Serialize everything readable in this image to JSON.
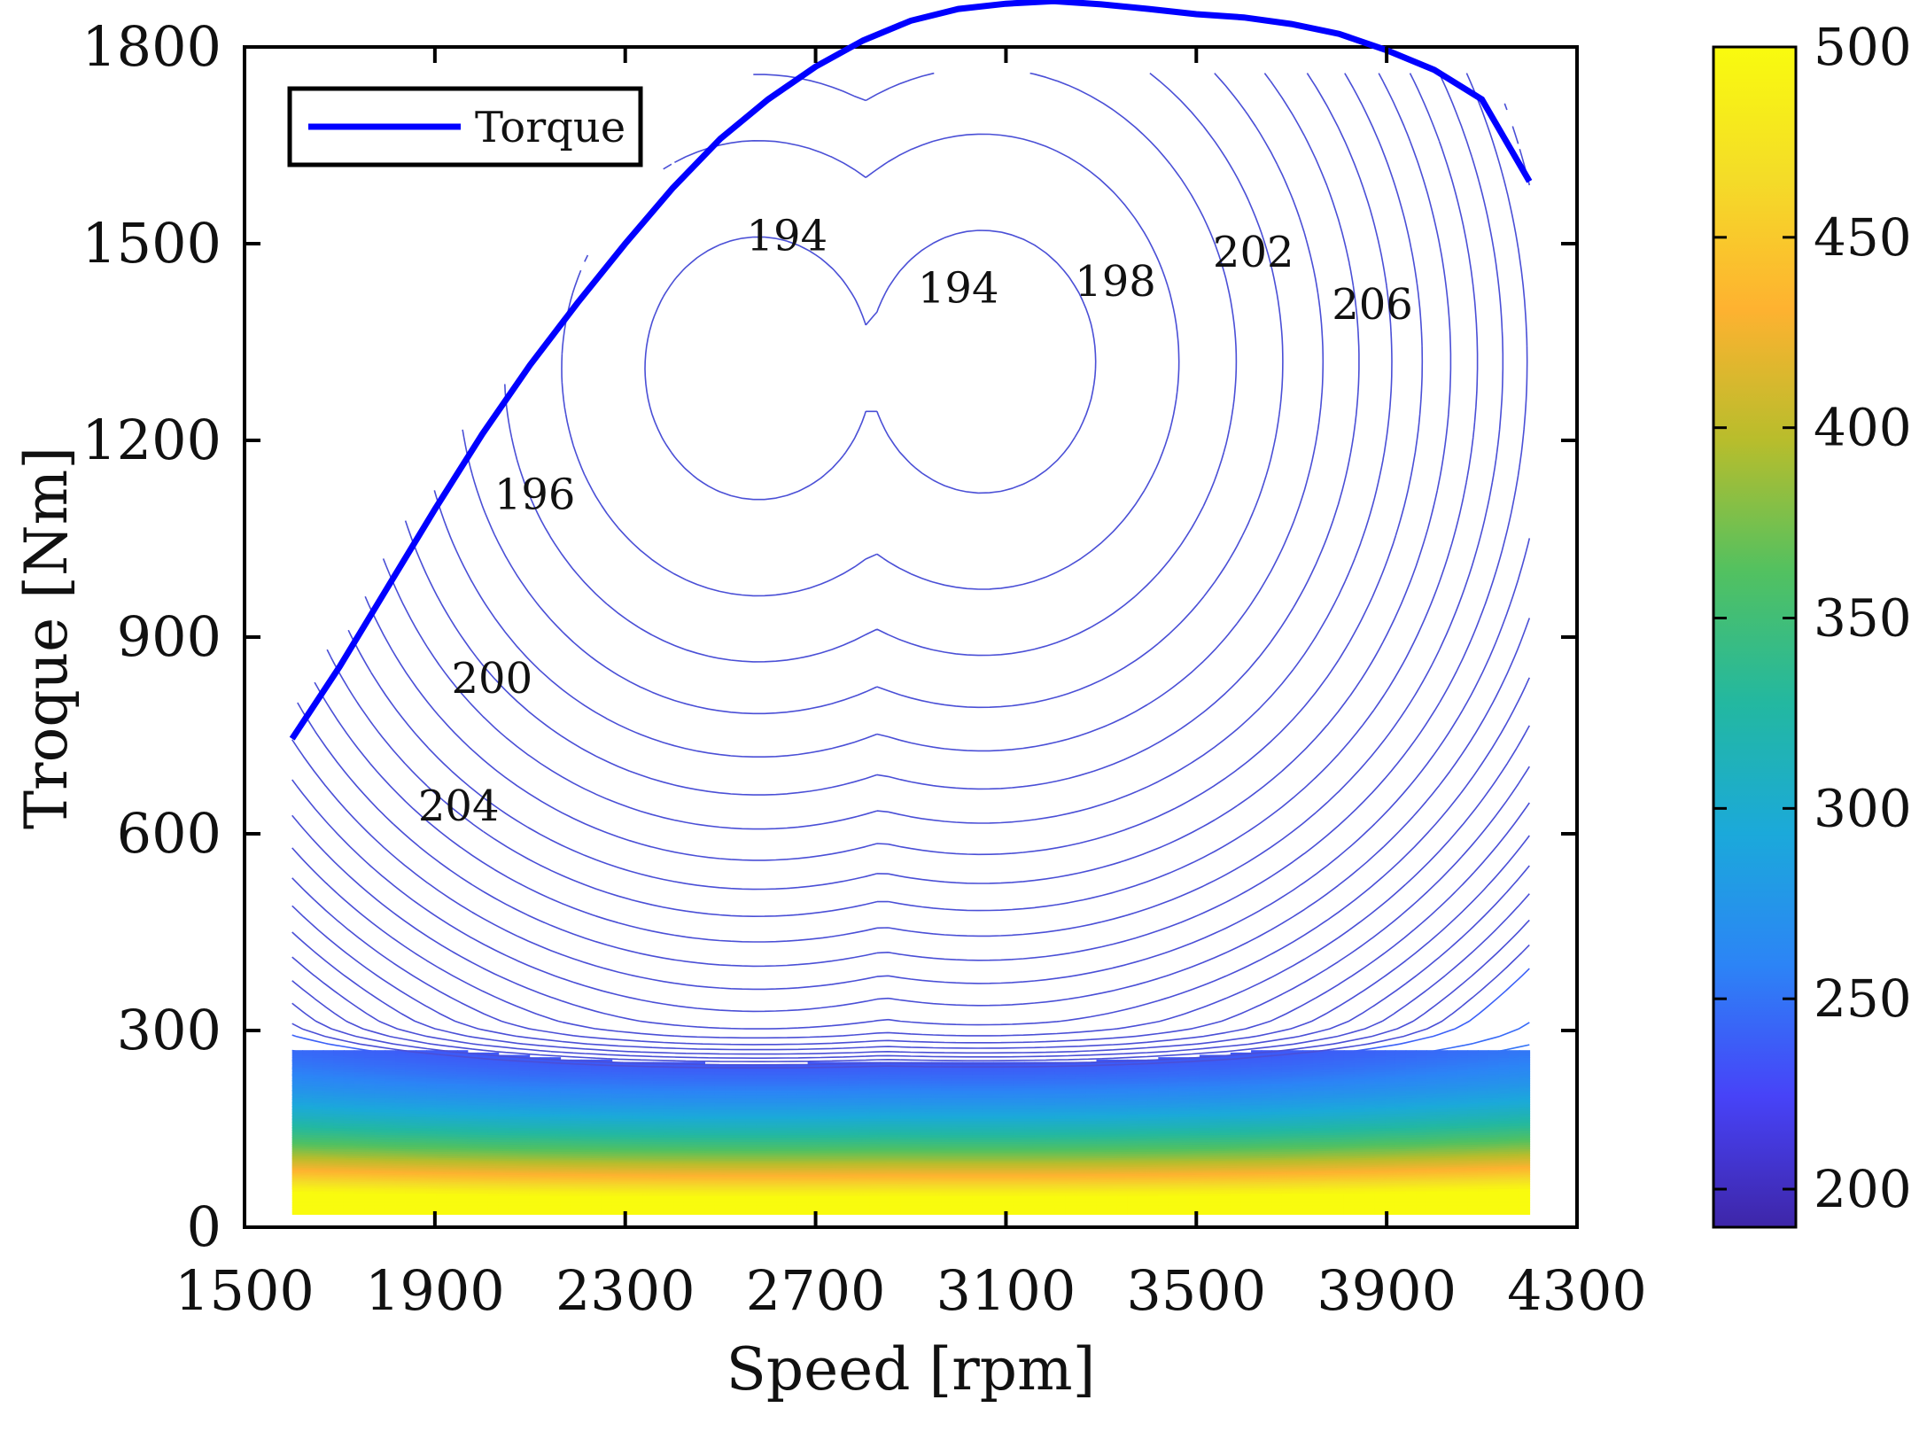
{
  "chart_data": {
    "type": "contour",
    "title": "",
    "xlabel": "Speed [rpm]",
    "ylabel": "Troque [Nm]",
    "xlim": [
      1500,
      4300
    ],
    "ylim": [
      0,
      1800
    ],
    "xticks": [
      "1500",
      "1900",
      "2300",
      "2700",
      "3100",
      "3500",
      "3900",
      "4300"
    ],
    "yticks": [
      "0",
      "300",
      "600",
      "900",
      "1200",
      "1500",
      "1800"
    ],
    "legend": {
      "position": "top-left",
      "entries": [
        "Torque"
      ]
    },
    "series": [
      {
        "name": "Torque",
        "color": "#0000ff",
        "x": [
          1600,
          1700,
          1800,
          1900,
          2000,
          2100,
          2200,
          2300,
          2400,
          2500,
          2600,
          2700,
          2800,
          2900,
          3000,
          3100,
          3200,
          3300,
          3400,
          3500,
          3600,
          3700,
          3800,
          3900,
          4000,
          4100,
          4200
        ],
        "y": [
          745,
          855,
          975,
          1095,
          1210,
          1315,
          1410,
          1500,
          1585,
          1660,
          1720,
          1770,
          1810,
          1840,
          1858,
          1866,
          1870,
          1865,
          1858,
          1850,
          1845,
          1835,
          1820,
          1795,
          1765,
          1720,
          1595
        ]
      }
    ],
    "contour_labels": [
      {
        "text": "194",
        "x": 2640,
        "y": 1490
      },
      {
        "text": "194",
        "x": 3000,
        "y": 1410
      },
      {
        "text": "196",
        "x": 2110,
        "y": 1095
      },
      {
        "text": "198",
        "x": 3330,
        "y": 1420
      },
      {
        "text": "200",
        "x": 2020,
        "y": 815
      },
      {
        "text": "202",
        "x": 3620,
        "y": 1465
      },
      {
        "text": "204",
        "x": 1950,
        "y": 620
      },
      {
        "text": "206",
        "x": 3870,
        "y": 1385
      }
    ],
    "colorbar": {
      "min": 190,
      "max": 500,
      "ticks": [
        "200",
        "250",
        "300",
        "350",
        "400",
        "450",
        "500"
      ],
      "colormap": [
        "#3e26a8",
        "#4743f8",
        "#2c84f6",
        "#1ba9da",
        "#23b8a0",
        "#52c160",
        "#b8bd2c",
        "#feb230",
        "#f4dc28",
        "#f9fb0e"
      ]
    },
    "contour_line_color": "#4a4fd6"
  }
}
